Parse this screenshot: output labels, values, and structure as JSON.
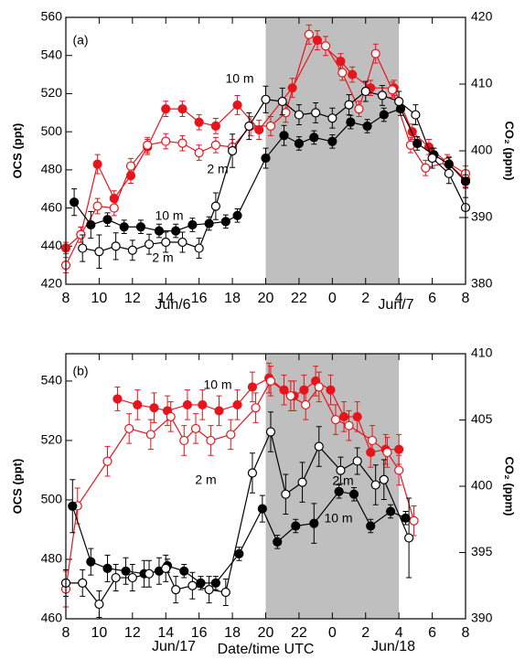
{
  "chart_data": [
    {
      "type": "line",
      "panel_label": "(a)",
      "ylabel": "OCS (ppt)",
      "y2label": "CO₂ (ppm)",
      "ylabel_color": "#e8141c",
      "xlim": [
        8,
        32
      ],
      "xticks": [
        8,
        10,
        12,
        14,
        16,
        18,
        20,
        22,
        {
          "value": 24,
          "label": "0"
        },
        {
          "value": 26,
          "label": "2"
        },
        {
          "value": 28,
          "label": "4"
        },
        {
          "value": 30,
          "label": "6"
        },
        {
          "value": 32,
          "label": "8"
        }
      ],
      "ylim": [
        420,
        560
      ],
      "yticks": [
        420,
        440,
        460,
        480,
        500,
        520,
        540,
        560
      ],
      "y2lim": [
        380,
        420
      ],
      "y2ticks": [
        380,
        390,
        400,
        410,
        420
      ],
      "shaded_span": [
        20,
        28
      ],
      "annotations": [
        "Jun/6",
        "Jun/7"
      ],
      "series": [
        {
          "name": "10 m",
          "color": "#e8141c",
          "marker": "filled",
          "axis": "y",
          "x": [
            8.0,
            8.9,
            9.9,
            10.9,
            11.9,
            12.9,
            14.0,
            15.0,
            16.0,
            17.0,
            18.3,
            19.6,
            21.6,
            23.1,
            24.5,
            25.2,
            26.3,
            27.7,
            28.8,
            29.8,
            31.0,
            32.0
          ],
          "values": [
            439,
            446,
            483,
            465,
            477,
            492,
            512,
            512,
            505,
            503,
            514,
            501,
            523,
            548,
            537,
            530,
            523,
            523,
            500,
            492,
            483,
            475
          ],
          "errors": [
            3,
            4,
            5,
            4,
            4,
            4,
            4,
            4,
            4,
            4,
            5,
            5,
            5,
            5,
            4,
            4,
            4,
            4,
            4,
            4,
            4,
            4
          ]
        },
        {
          "name": "2 m",
          "color": "#e8141c",
          "marker": "open",
          "axis": "y",
          "x": [
            8.0,
            8.9,
            9.9,
            10.9,
            11.9,
            12.9,
            14.0,
            15.0,
            16.0,
            17.0,
            18.0,
            19.1,
            20.3,
            21.2,
            22.6,
            23.6,
            24.6,
            25.6,
            26.6,
            27.6,
            28.7,
            29.6,
            30.9,
            32.0
          ],
          "values": [
            430,
            446,
            461,
            460,
            482,
            493,
            495,
            494,
            489,
            493,
            492,
            503,
            503,
            510,
            551,
            545,
            531,
            512,
            541,
            522,
            493,
            481,
            484,
            478
          ],
          "errors": [
            4,
            4,
            4,
            4,
            4,
            4,
            4,
            4,
            4,
            4,
            4,
            5,
            5,
            5,
            5,
            5,
            4,
            4,
            5,
            4,
            4,
            4,
            4,
            4
          ]
        },
        {
          "name": "10 m",
          "color": "#000000",
          "marker": "filled",
          "axis": "y2",
          "x": [
            8.5,
            9.5,
            10.5,
            11.5,
            12.5,
            13.6,
            14.6,
            15.6,
            16.6,
            17.6,
            18.3,
            20.0,
            21.1,
            22.0,
            22.9,
            24.0,
            25.1,
            26.1,
            27.1,
            28.1,
            29.1,
            30.1,
            31.0,
            32.0
          ],
          "values": [
            392.3,
            388.9,
            389.7,
            388.6,
            388.6,
            388.0,
            388.0,
            388.9,
            389.1,
            389.4,
            390.3,
            398.9,
            402.3,
            401.1,
            402.0,
            401.4,
            404.3,
            403.7,
            405.4,
            406.3,
            401.1,
            399.4,
            398.0,
            395.4
          ],
          "errors": [
            2,
            2,
            1,
            1,
            1,
            1,
            1,
            1,
            1,
            1,
            1,
            1.5,
            1.5,
            1,
            1,
            1,
            1,
            1,
            1,
            1,
            1,
            1,
            1,
            1
          ]
        },
        {
          "name": "2 m",
          "color": "#000000",
          "marker": "open",
          "axis": "y2",
          "x": [
            9.0,
            10.0,
            11.0,
            12.0,
            13.0,
            14.0,
            15.0,
            16.0,
            17.0,
            18.0,
            19.0,
            20.0,
            21.0,
            22.0,
            23.0,
            24.0,
            25.0,
            26.0,
            27.0,
            28.0,
            29.0,
            30.0,
            31.0,
            32.0
          ],
          "values": [
            385.4,
            384.9,
            385.7,
            385.1,
            386.0,
            386.3,
            386.3,
            385.4,
            391.7,
            400.0,
            403.7,
            407.7,
            407.4,
            405.4,
            405.7,
            404.9,
            406.9,
            408.9,
            408.3,
            407.4,
            405.4,
            398.9,
            396.6,
            391.5
          ],
          "errors": [
            2,
            2.5,
            2,
            1.5,
            1.5,
            1.5,
            1.5,
            1.5,
            2,
            2.5,
            2,
            2,
            2,
            1.5,
            1.5,
            1.5,
            1.5,
            1.5,
            1.5,
            1.5,
            1.5,
            1.5,
            1.5,
            1.5
          ]
        }
      ]
    },
    {
      "type": "line",
      "panel_label": "(b)",
      "ylabel": "OCS (ppt)",
      "y2label": "CO₂ (ppm)",
      "xlabel": "Date/time UTC",
      "ylabel_color": "#e8141c",
      "xlim": [
        8,
        32
      ],
      "xticks": [
        8,
        10,
        12,
        14,
        16,
        18,
        20,
        22,
        {
          "value": 24,
          "label": "0"
        },
        {
          "value": 26,
          "label": "2"
        },
        {
          "value": 28,
          "label": "4"
        },
        {
          "value": 30,
          "label": "6"
        },
        {
          "value": 32,
          "label": "8"
        }
      ],
      "ylim": [
        460,
        549.2
      ],
      "yticks": [
        460,
        480,
        500,
        520,
        540
      ],
      "y2lim": [
        390,
        410
      ],
      "y2ticks": [
        390,
        395,
        400,
        405,
        410
      ],
      "shaded_span": [
        20,
        28
      ],
      "annotations": [
        "Jun/17",
        "Jun/18"
      ],
      "series": [
        {
          "name": "10 m",
          "color": "#e8141c",
          "marker": "filled",
          "axis": "y",
          "x": [
            11.1,
            12.3,
            13.3,
            14.1,
            15.3,
            16.2,
            17.2,
            18.3,
            19.2,
            20.2,
            21.1,
            21.7,
            22.3,
            23.0,
            23.9,
            24.7,
            25.5,
            26.3,
            27.2,
            28.0
          ],
          "values": [
            534,
            532,
            531,
            530,
            532,
            532,
            530,
            532,
            538,
            541,
            537,
            535,
            537,
            540,
            537,
            528,
            528,
            516,
            517,
            517
          ],
          "errors": [
            4,
            5,
            5,
            5,
            5,
            5,
            5,
            5,
            5,
            5,
            5,
            5,
            5,
            5,
            5,
            5,
            5,
            5,
            5,
            5
          ]
        },
        {
          "name": "2 m",
          "color": "#e8141c",
          "marker": "open",
          "axis": "y",
          "x": [
            8.0,
            8.7,
            10.5,
            11.8,
            13.1,
            14.3,
            15.1,
            15.8,
            16.7,
            17.9,
            19.4,
            20.3,
            21.5,
            22.4,
            23.2,
            24.2,
            25.0,
            26.4,
            27.3,
            28.0,
            28.9
          ],
          "values": [
            470,
            498,
            513,
            524,
            522,
            528,
            520,
            524,
            520,
            522,
            531,
            540,
            535,
            532,
            538,
            527,
            525,
            520,
            516,
            510,
            493
          ],
          "errors": [
            6,
            6,
            5,
            5,
            5,
            5,
            5,
            5,
            5,
            5,
            5,
            5,
            5,
            5,
            5,
            5,
            5,
            5,
            5,
            5,
            5
          ]
        },
        {
          "name": "10 m",
          "color": "#000000",
          "marker": "filled",
          "axis": "y2",
          "x": [
            8.4,
            9.5,
            10.5,
            11.6,
            12.7,
            13.6,
            14.1,
            15.1,
            16.1,
            17.0,
            18.4,
            19.8,
            20.7,
            21.8,
            22.9,
            24.4,
            25.3,
            26.3,
            27.5,
            28.4
          ],
          "values": [
            398.5,
            394.3,
            393.8,
            393.6,
            393.4,
            393.6,
            394.0,
            393.6,
            392.7,
            392.7,
            394.9,
            398.3,
            395.8,
            397.0,
            397.2,
            399.6,
            399.4,
            397.0,
            398.1,
            397.6
          ],
          "errors": [
            2,
            1,
            1,
            1,
            1,
            1,
            0.5,
            0.5,
            0.5,
            0.5,
            0.5,
            1,
            0.5,
            0.5,
            1.5,
            0.5,
            0.5,
            0.5,
            0.5,
            0.5
          ]
        },
        {
          "name": "2 m",
          "color": "#000000",
          "marker": "open",
          "axis": "y2",
          "x": [
            8.0,
            9.0,
            10.0,
            11.0,
            12.0,
            13.0,
            14.0,
            14.6,
            15.6,
            16.6,
            17.6,
            19.2,
            20.3,
            21.2,
            22.2,
            23.2,
            24.5,
            25.5,
            26.6,
            27.1,
            28.6
          ],
          "values": [
            392.7,
            392.7,
            391.1,
            393.1,
            393.1,
            393.4,
            393.8,
            392.2,
            392.5,
            392.2,
            392.0,
            401.0,
            404.1,
            399.4,
            400.3,
            403.0,
            401.2,
            401.9,
            400.1,
            400.5,
            396.1
          ],
          "errors": [
            1,
            1,
            1,
            1,
            1,
            1,
            1,
            1,
            1,
            1,
            1,
            1.5,
            1.5,
            1.5,
            1.5,
            1.5,
            1,
            1,
            1.5,
            1.5,
            3
          ]
        }
      ]
    }
  ]
}
